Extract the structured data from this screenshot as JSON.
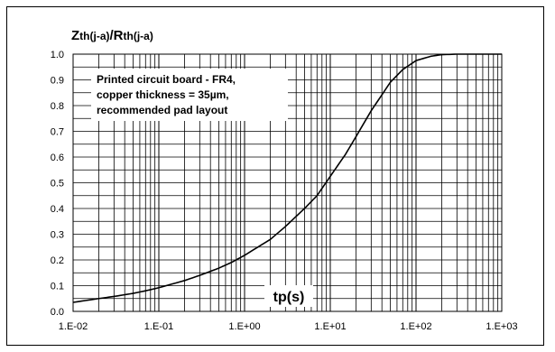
{
  "chart_data": {
    "type": "line",
    "title_parts": [
      {
        "text": "Z",
        "size": "big"
      },
      {
        "text": "th(j-a)",
        "size": "small"
      },
      {
        "text": "/R",
        "size": "big"
      },
      {
        "text": "th(j-a)",
        "size": "small"
      }
    ],
    "xlabel": "tp(s)",
    "annotation_lines": [
      "Printed circuit board - FR4,",
      "copper thickness = 35µm,",
      "recommended pad layout"
    ],
    "x_scale": "log",
    "xlim": [
      0.01,
      1000
    ],
    "ylim": [
      0,
      1
    ],
    "x_tick_labels": [
      "1.E-02",
      "1.E-01",
      "1.E+00",
      "1.E+01",
      "1.E+02",
      "1.E+03"
    ],
    "x_tick_values": [
      0.01,
      0.1,
      1,
      10,
      100,
      1000
    ],
    "y_tick_labels": [
      "0.0",
      "0.1",
      "0.2",
      "0.3",
      "0.4",
      "0.5",
      "0.6",
      "0.7",
      "0.8",
      "0.9",
      "1.0"
    ],
    "y_tick_values": [
      0,
      0.1,
      0.2,
      0.3,
      0.4,
      0.5,
      0.6,
      0.7,
      0.8,
      0.9,
      1.0
    ],
    "grid": true,
    "line_color": "#000000",
    "series": [
      {
        "x": [
          0.01,
          0.02,
          0.03,
          0.05,
          0.07,
          0.1,
          0.2,
          0.3,
          0.5,
          0.7,
          1,
          2,
          3,
          5,
          7,
          10,
          15,
          20,
          30,
          50,
          70,
          100,
          150,
          200,
          300,
          500,
          1000
        ],
        "values": [
          0.035,
          0.05,
          0.058,
          0.07,
          0.08,
          0.092,
          0.12,
          0.14,
          0.168,
          0.19,
          0.218,
          0.28,
          0.33,
          0.4,
          0.45,
          0.525,
          0.61,
          0.68,
          0.78,
          0.89,
          0.94,
          0.975,
          0.992,
          0.998,
          1.0,
          1.0,
          1.0
        ]
      }
    ]
  }
}
